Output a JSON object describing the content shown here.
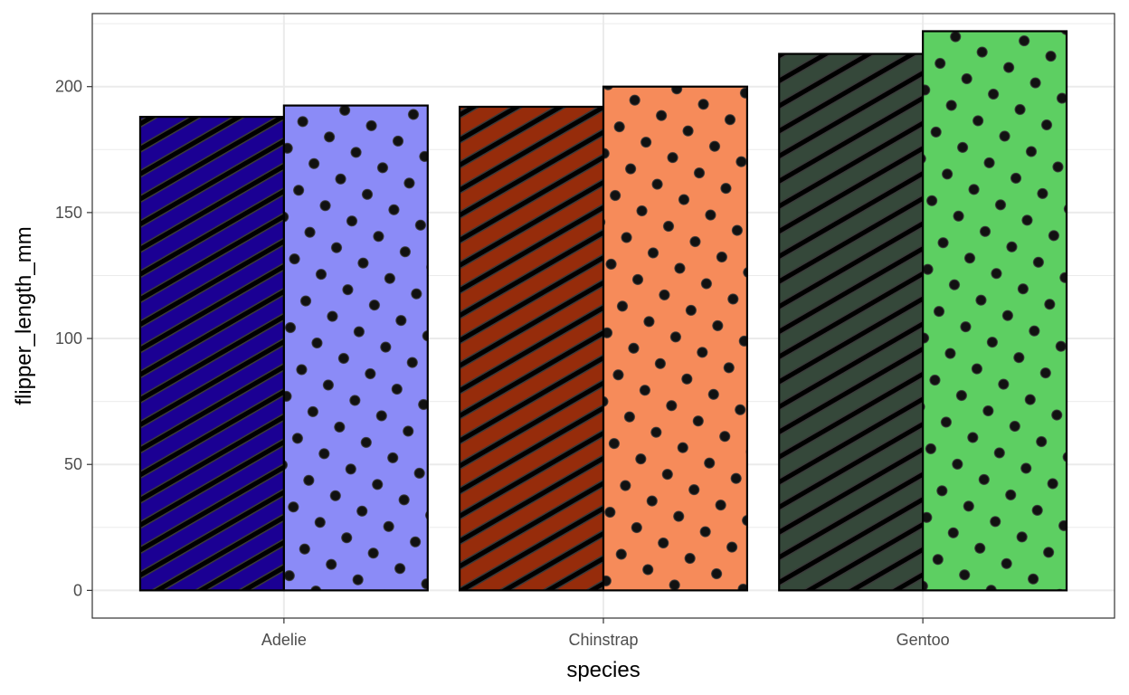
{
  "chart_data": {
    "type": "bar",
    "categories": [
      "Adelie",
      "Chinstrap",
      "Gentoo"
    ],
    "xlabel": "species",
    "ylabel": "flipper_length_mm",
    "ylim": [
      -11,
      229
    ],
    "yticks": [
      0,
      50,
      100,
      150,
      200
    ],
    "grid": true,
    "legend": "none",
    "series": [
      {
        "pattern": "stripe",
        "colors": [
          "#1b0093",
          "#962c0b",
          "#35483a"
        ],
        "values": [
          188,
          192,
          213
        ]
      },
      {
        "pattern": "circle",
        "colors": [
          "#8b8bf7",
          "#f68b5a",
          "#5dcf62"
        ],
        "values": [
          192.5,
          200,
          222
        ]
      }
    ]
  }
}
